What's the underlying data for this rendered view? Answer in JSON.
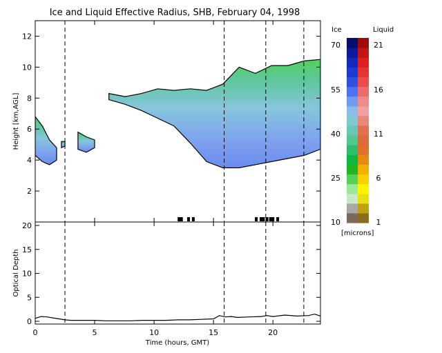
{
  "chart_data": [
    {
      "type": "heatmap",
      "title": "Ice and Liquid Effective Radius, SHB, February 04, 1998",
      "ylabel": "Height [km,AGL]",
      "xlim": [
        0,
        24
      ],
      "ylim": [
        0,
        13
      ],
      "x_ticks": [
        0,
        5,
        10,
        15,
        20
      ],
      "y_ticks": [
        2,
        4,
        6,
        8,
        10,
        12
      ],
      "dashed_vlines": [
        2.5,
        15.9,
        19.4,
        22.6
      ],
      "cloud_layers": [
        {
          "x0": 0.0,
          "x1": 1.8,
          "base": [
            4.3,
            3.9,
            3.7,
            4.0
          ],
          "top": [
            6.8,
            6.2,
            5.3,
            4.8
          ]
        },
        {
          "x0": 2.2,
          "x1": 2.5,
          "base": [
            4.8,
            4.9
          ],
          "top": [
            5.2,
            5.2
          ]
        },
        {
          "x0": 3.6,
          "x1": 5.0,
          "base": [
            4.7,
            4.5,
            4.8
          ],
          "top": [
            5.8,
            5.5,
            5.3
          ]
        },
        {
          "x0": 6.2,
          "x1": 24.0,
          "base": [
            7.9,
            7.6,
            7.2,
            6.7,
            6.2,
            5.1,
            3.9,
            3.5,
            3.5,
            3.7,
            3.9,
            4.1,
            4.3,
            4.7
          ],
          "top": [
            8.3,
            8.1,
            8.3,
            8.6,
            8.5,
            8.6,
            8.5,
            8.9,
            10.0,
            9.6,
            10.1,
            10.1,
            10.4,
            10.5
          ]
        }
      ],
      "surface_marks_x": [
        12.1,
        12.3,
        12.9,
        13.3,
        18.6,
        19.0,
        19.2,
        19.5,
        19.8,
        20.0,
        20.4
      ]
    },
    {
      "type": "line",
      "xlabel": "Time (hours, GMT)",
      "ylabel": "Optical Depth",
      "xlim": [
        0,
        24
      ],
      "ylim": [
        0,
        20
      ],
      "x_ticks": [
        0,
        5,
        10,
        15,
        20
      ],
      "y_ticks": [
        0,
        5,
        10,
        15,
        20
      ],
      "dashed_vlines": [
        2.5,
        15.9,
        19.4,
        22.6
      ],
      "series": [
        {
          "x": [
            0,
            0.5,
            1,
            1.5,
            2,
            2.5,
            3,
            4,
            5,
            6,
            7,
            8,
            9,
            10,
            11,
            12,
            13,
            14,
            15,
            15.5,
            16,
            16.5,
            17,
            18,
            19,
            19.5,
            20,
            21,
            22,
            23,
            23.5,
            24
          ],
          "values": [
            0.6,
            1.0,
            0.9,
            0.7,
            0.5,
            0.3,
            0.2,
            0.2,
            0.2,
            0.1,
            0.1,
            0.1,
            0.2,
            0.2,
            0.2,
            0.3,
            0.3,
            0.4,
            0.5,
            1.2,
            0.9,
            1.0,
            0.8,
            0.9,
            1.0,
            1.2,
            1.0,
            1.3,
            1.1,
            1.2,
            1.5,
            1.1
          ]
        }
      ]
    }
  ],
  "colorbar": {
    "ice_label": "Ice",
    "liquid_label": "Liquid",
    "units_label": "[microns]",
    "ice_ticks": [
      "70",
      "55",
      "40",
      "25",
      "10"
    ],
    "liquid_ticks": [
      "21",
      "16",
      "11",
      "6",
      "1"
    ],
    "ice_colors": [
      "#7a6a5a",
      "#a8a8a8",
      "#c9e8c9",
      "#9ae79a",
      "#58cf58",
      "#22b422",
      "#10b840",
      "#30be6e",
      "#52c890",
      "#68c8b4",
      "#80c8d2",
      "#8cbcea",
      "#6f9cf0",
      "#4c74f0",
      "#3050e4",
      "#1d3ad4",
      "#1428bc",
      "#0c1a9c",
      "#050e6e"
    ],
    "liquid_colors": [
      "#8c6c18",
      "#bfa010",
      "#e6e210",
      "#fff400",
      "#f8cf00",
      "#f0b000",
      "#e88a10",
      "#e27028",
      "#de6a3a",
      "#e27050",
      "#e88878",
      "#f0a0a0",
      "#f08a8a",
      "#f06a6a",
      "#ee4b4b",
      "#e63434",
      "#dc2020",
      "#c41414",
      "#a00a0a"
    ]
  }
}
